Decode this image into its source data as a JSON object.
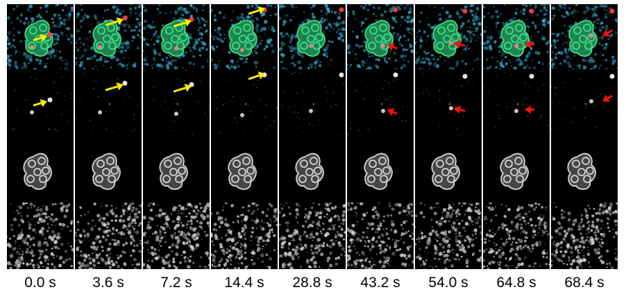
{
  "figure": {
    "time_labels": [
      "0.0 s",
      "3.6 s",
      "7.2 s",
      "14.4 s",
      "28.8 s",
      "43.2 s",
      "54.0 s",
      "64.8 s",
      "68.4 s"
    ],
    "rows": [
      {
        "channel": "merge",
        "colors": {
          "background": "#000000",
          "cyan": "#35b4d8",
          "green": "#3fe28a",
          "red": "#ff3a4a"
        }
      },
      {
        "channel": "red-grayscale"
      },
      {
        "channel": "green-grayscale"
      },
      {
        "channel": "cyan-grayscale"
      }
    ],
    "arrows": {
      "yellow": {
        "color": "#ffee00",
        "frames": [
          0,
          1,
          2,
          3
        ]
      },
      "red": {
        "color": "#ff1010",
        "frames": [
          5,
          6,
          7,
          8
        ]
      }
    }
  }
}
